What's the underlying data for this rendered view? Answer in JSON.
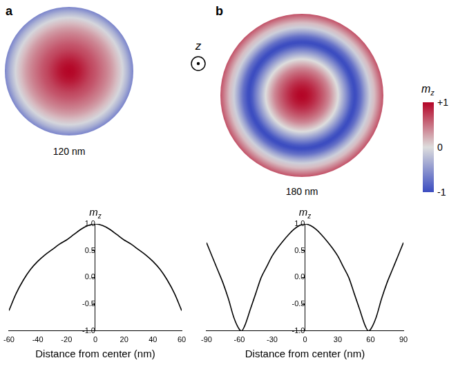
{
  "panels": [
    {
      "letter": "a",
      "label": "120 nm"
    },
    {
      "letter": "b",
      "label": "180 nm"
    }
  ],
  "axis_symbol": "z",
  "colorbar": {
    "label": {
      "text": "m",
      "subscript": "z"
    },
    "range": [
      -1,
      1
    ],
    "ticks": [
      {
        "value": 1,
        "label": "+1"
      },
      0,
      {
        "value": -1,
        "label": "-1"
      }
    ]
  },
  "chart_data": [
    {
      "type": "line",
      "x_label": "Distance from center (nm)",
      "y_label": {
        "text": "m",
        "subscript": "z"
      },
      "x": [
        -60,
        -55,
        -50,
        -45,
        -40,
        -35,
        -30,
        -25,
        -20,
        -15,
        -10,
        -5,
        0,
        5,
        10,
        15,
        20,
        25,
        30,
        35,
        40,
        45,
        50,
        55,
        60
      ],
      "series": [
        {
          "color": "#000000",
          "line_style": "solid",
          "values": [
            -0.62,
            -0.3,
            -0.05,
            0.15,
            0.3,
            0.42,
            0.52,
            0.62,
            0.7,
            0.8,
            0.9,
            0.97,
            1.0,
            0.97,
            0.9,
            0.8,
            0.7,
            0.62,
            0.52,
            0.42,
            0.3,
            0.15,
            -0.05,
            -0.3,
            -0.62
          ]
        }
      ],
      "xlim": [
        -60,
        60
      ],
      "xticks": [
        -60,
        -40,
        -20,
        0,
        20,
        40,
        60
      ],
      "ylim": [
        -1,
        1
      ],
      "yticks": [
        {
          "value": -1,
          "label": "-1.0"
        },
        {
          "value": -0.5,
          "label": "-0.5"
        },
        {
          "value": 0,
          "label": "0.0"
        },
        {
          "value": 0.5,
          "label": "0.5"
        },
        {
          "value": 1,
          "label": "1.0"
        }
      ],
      "grid": false
    },
    {
      "type": "line",
      "x_label": "Distance from center (nm)",
      "y_label": {
        "text": "m",
        "subscript": "z"
      },
      "x": [
        -90,
        -85,
        -80,
        -75,
        -70,
        -65,
        -60,
        -58,
        -55,
        -50,
        -45,
        -40,
        -35,
        -30,
        -25,
        -20,
        -15,
        -10,
        -5,
        0,
        5,
        10,
        15,
        20,
        25,
        30,
        35,
        40,
        45,
        50,
        55,
        58,
        60,
        65,
        70,
        75,
        80,
        85,
        90
      ],
      "series": [
        {
          "color": "#000000",
          "line_style": "solid",
          "values": [
            0.65,
            0.4,
            0.15,
            -0.1,
            -0.4,
            -0.75,
            -0.97,
            -1.0,
            -0.9,
            -0.6,
            -0.3,
            0.0,
            0.2,
            0.4,
            0.55,
            0.68,
            0.8,
            0.9,
            0.97,
            1.0,
            0.97,
            0.9,
            0.8,
            0.68,
            0.55,
            0.4,
            0.2,
            0.0,
            -0.3,
            -0.6,
            -0.9,
            -1.0,
            -0.97,
            -0.75,
            -0.4,
            -0.1,
            0.15,
            0.4,
            0.65
          ]
        }
      ],
      "xlim": [
        -90,
        90
      ],
      "xticks": [
        -90,
        -60,
        -30,
        0,
        30,
        60,
        90
      ],
      "ylim": [
        -1,
        1
      ],
      "yticks": [
        {
          "value": -1,
          "label": "-1.0"
        },
        {
          "value": -0.5,
          "label": "-0.5"
        },
        {
          "value": 0,
          "label": "0.0"
        },
        {
          "value": 0.5,
          "label": "0.5"
        },
        {
          "value": 1,
          "label": "1.0"
        }
      ],
      "grid": false
    }
  ]
}
